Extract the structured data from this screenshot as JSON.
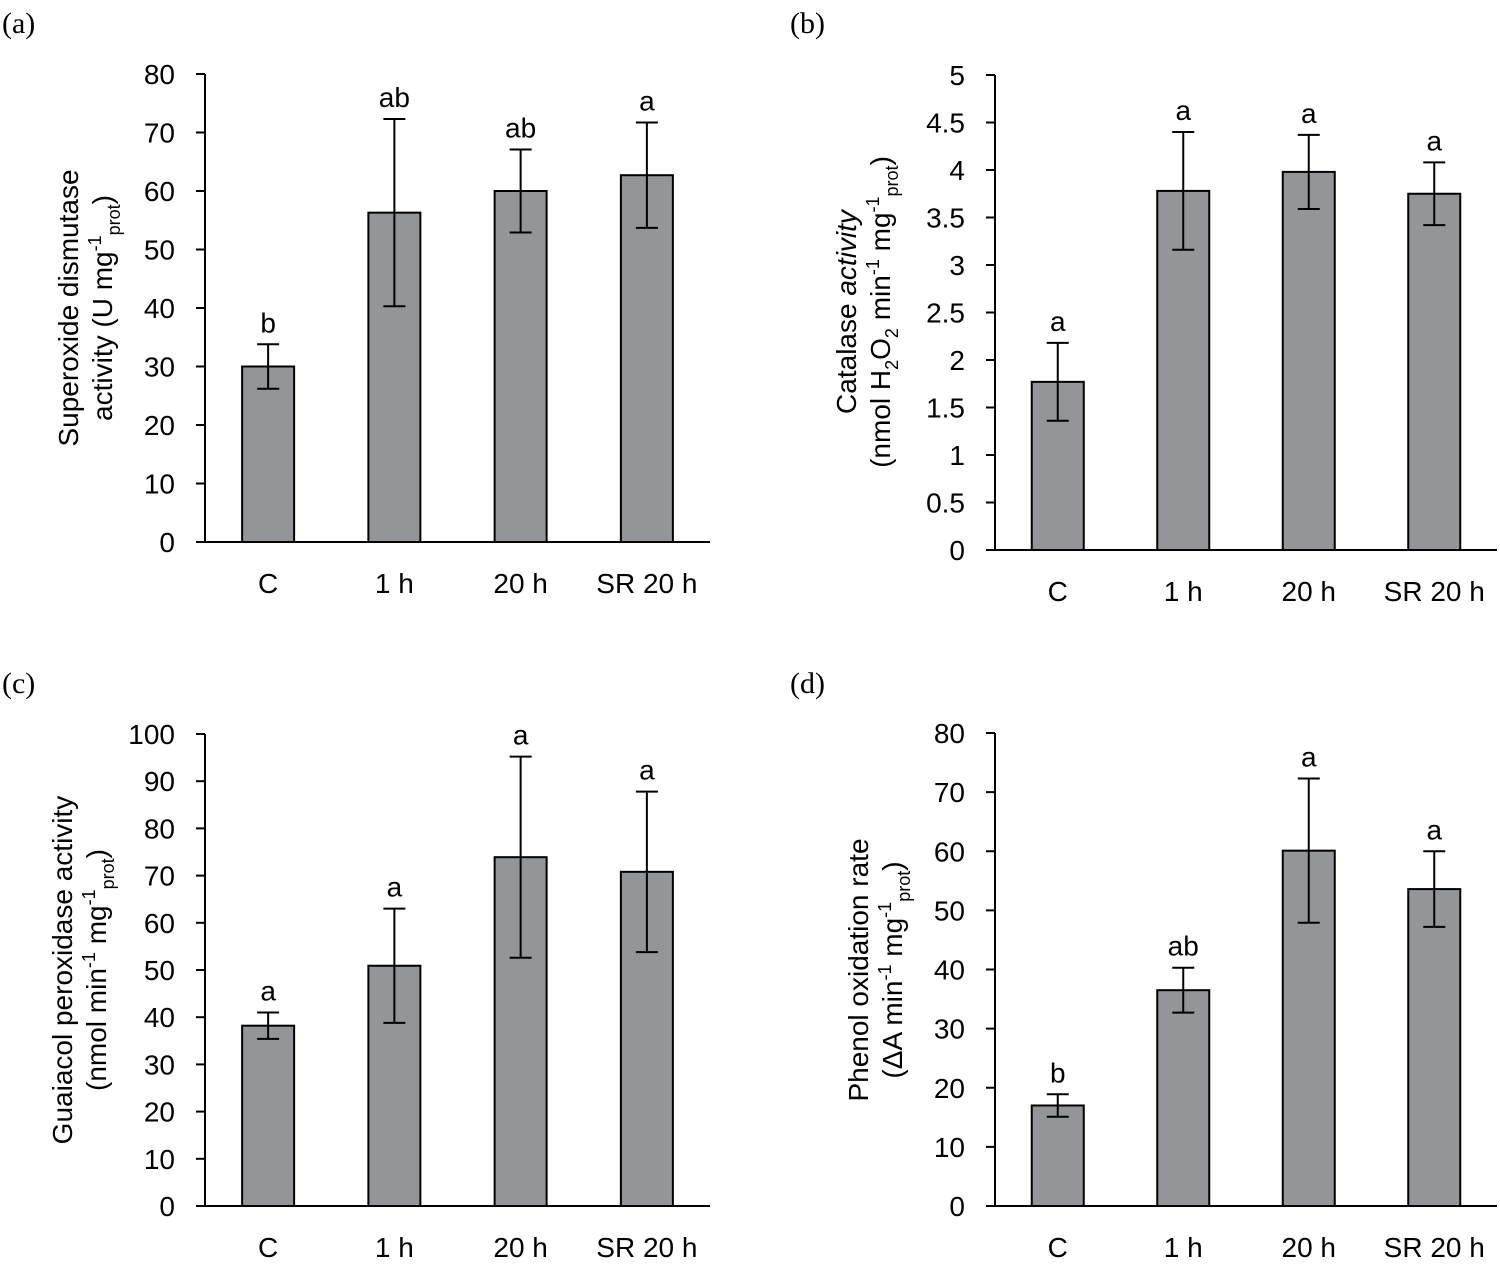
{
  "chart_data": [
    {
      "panel": "(a)",
      "type": "bar",
      "categories": [
        "C",
        "1 h",
        "20 h",
        "SR 20 h"
      ],
      "values": [
        30,
        56.3,
        60,
        62.7
      ],
      "errors": [
        3.8,
        16,
        7.1,
        9
      ],
      "sig_letters": [
        "b",
        "ab",
        "ab",
        "a"
      ],
      "ylim": [
        0,
        80
      ],
      "yticks": [
        0,
        10,
        20,
        30,
        40,
        50,
        60,
        70,
        80
      ],
      "ytick_labels": [
        "0",
        "10",
        "20",
        "30",
        "40",
        "50",
        "60",
        "70",
        "80"
      ],
      "ylabel": {
        "line1": [
          {
            "t": "Superoxide dismutase"
          }
        ],
        "line2": [
          {
            "t": "activity (U mg"
          },
          {
            "t": "-1",
            "s": "sup"
          },
          {
            "t": "prot",
            "s": "sub"
          },
          {
            "t": ")"
          }
        ]
      }
    },
    {
      "panel": "(b)",
      "type": "bar",
      "categories": [
        "C",
        "1 h",
        "20 h",
        "SR 20 h"
      ],
      "values": [
        1.77,
        3.78,
        3.98,
        3.75
      ],
      "errors": [
        0.41,
        0.62,
        0.39,
        0.33
      ],
      "sig_letters": [
        "a",
        "a",
        "a",
        "a"
      ],
      "ylim": [
        0,
        5
      ],
      "yticks": [
        0,
        0.5,
        1,
        1.5,
        2,
        2.5,
        3,
        3.5,
        4,
        4.5,
        5
      ],
      "ytick_labels": [
        "0",
        "0.5",
        "1",
        "1.5",
        "2",
        "2.5",
        "3",
        "3.5",
        "4",
        "4.5",
        "5"
      ],
      "ylabel": {
        "line1": [
          {
            "t": "Catalase "
          },
          {
            "t": "activity",
            "s": "ital"
          }
        ],
        "line2": [
          {
            "t": "(nmol H"
          },
          {
            "t": "2",
            "s": "sub"
          },
          {
            "t": "O"
          },
          {
            "t": "2",
            "s": "sub"
          },
          {
            "t": " min"
          },
          {
            "t": "-1",
            "s": "sup"
          },
          {
            "t": " mg"
          },
          {
            "t": "-1",
            "s": "sup"
          },
          {
            "t": "prot",
            "s": "sub"
          },
          {
            "t": ")"
          }
        ]
      }
    },
    {
      "panel": "(c)",
      "type": "bar",
      "categories": [
        "C",
        "1 h",
        "20 h",
        "SR 20 h"
      ],
      "values": [
        38.2,
        50.9,
        73.9,
        70.8
      ],
      "errors": [
        2.8,
        12.1,
        21.3,
        17
      ],
      "sig_letters": [
        "a",
        "a",
        "a",
        "a"
      ],
      "ylim": [
        0,
        100
      ],
      "yticks": [
        0,
        10,
        20,
        30,
        40,
        50,
        60,
        70,
        80,
        90,
        100
      ],
      "ytick_labels": [
        "0",
        "10",
        "20",
        "30",
        "40",
        "50",
        "60",
        "70",
        "80",
        "90",
        "100"
      ],
      "ylabel": {
        "line1": [
          {
            "t": "Guaiacol peroxidase activity"
          }
        ],
        "line2": [
          {
            "t": "(nmol min"
          },
          {
            "t": "-1",
            "s": "sup"
          },
          {
            "t": " mg"
          },
          {
            "t": "-1",
            "s": "sup"
          },
          {
            "t": "prot",
            "s": "sub"
          },
          {
            "t": ")"
          }
        ]
      }
    },
    {
      "panel": "(d)",
      "type": "bar",
      "categories": [
        "C",
        "1 h",
        "20 h",
        "SR 20 h"
      ],
      "values": [
        17,
        36.5,
        60.1,
        53.6
      ],
      "errors": [
        1.9,
        3.8,
        12.2,
        6.4
      ],
      "sig_letters": [
        "b",
        "ab",
        "a",
        "a"
      ],
      "ylim": [
        0,
        80
      ],
      "yticks": [
        0,
        10,
        20,
        30,
        40,
        50,
        60,
        70,
        80
      ],
      "ytick_labels": [
        "0",
        "10",
        "20",
        "30",
        "40",
        "50",
        "60",
        "70",
        "80"
      ],
      "ylabel": {
        "line1": [
          {
            "t": "Phenol oxidation rate"
          }
        ],
        "line2": [
          {
            "t": "(ΔA min"
          },
          {
            "t": "-1",
            "s": "sup"
          },
          {
            "t": " mg"
          },
          {
            "t": "-1",
            "s": "sup"
          },
          {
            "t": "prot",
            "s": "sub"
          },
          {
            "t": ")"
          }
        ]
      }
    }
  ]
}
